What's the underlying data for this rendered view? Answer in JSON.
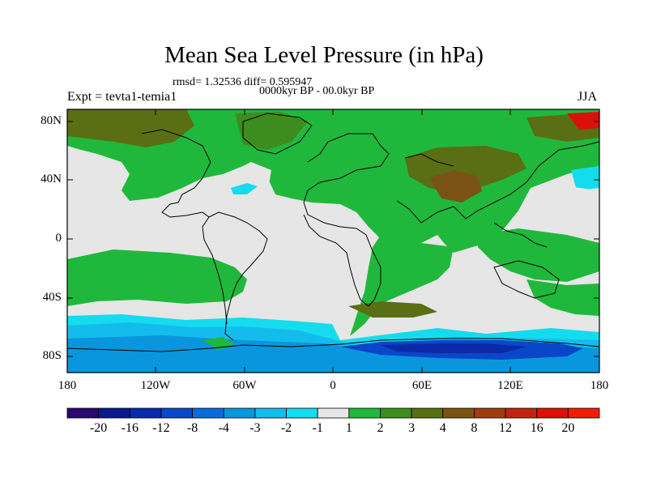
{
  "title": "Mean Sea Level Pressure (in hPa)",
  "stats_line": "rmsd= 1.32536 diff= 0.595947",
  "period_line": "0000kyr BP - 00.0kyr BP",
  "experiment": "Expt = tevta1-temia1",
  "season": "JJA",
  "lat_labels": [
    "80N",
    "40N",
    "0",
    "40S",
    "80S"
  ],
  "lon_labels": [
    "180",
    "120W",
    "60W",
    "0",
    "60E",
    "120E",
    "180"
  ],
  "colorbar": {
    "labels": [
      "-20",
      "-16",
      "-12",
      "-8",
      "-4",
      "-3",
      "-2",
      "-1",
      "1",
      "2",
      "3",
      "4",
      "8",
      "12",
      "16",
      "20"
    ],
    "colors": [
      "#2a0a6e",
      "#0a1a8c",
      "#0a2aa8",
      "#0a46c8",
      "#0a6cd8",
      "#0a96dc",
      "#14bcec",
      "#14dcee",
      "#e6e6e6",
      "#20b83c",
      "#3c8c1e",
      "#5a6e14",
      "#7a5214",
      "#a03c10",
      "#c02410",
      "#dc1008",
      "#f01c08"
    ]
  }
}
